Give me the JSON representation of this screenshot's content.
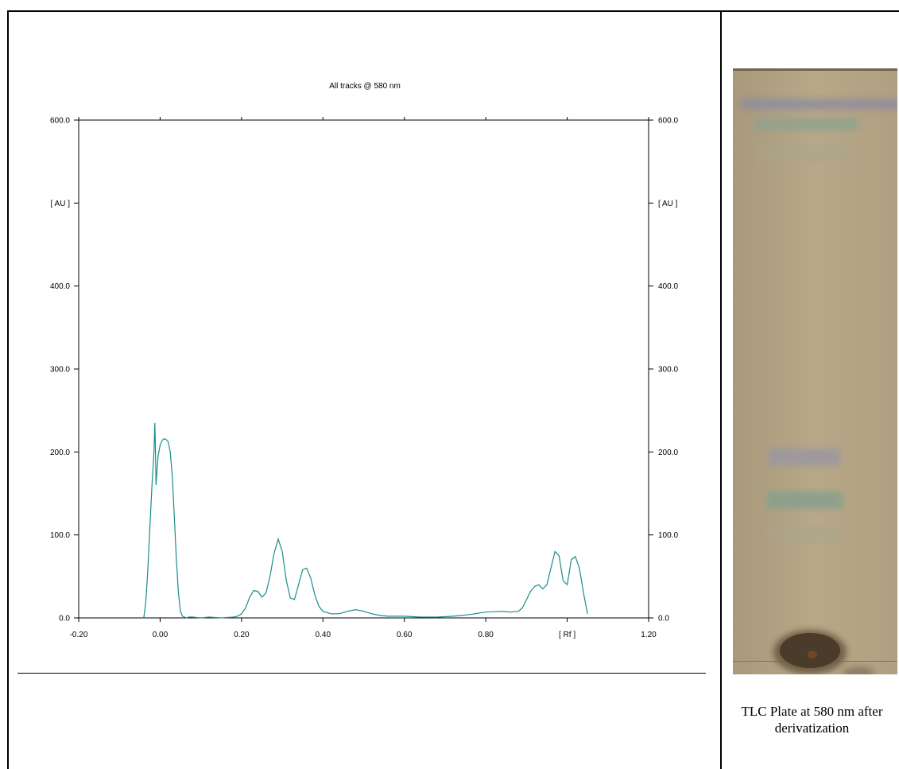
{
  "chart_data": {
    "type": "line",
    "title": "All tracks @ 580 nm",
    "ylabel": "[ AU ]",
    "xlabel": "[ Rf ]",
    "xlim": [
      -0.2,
      1.2
    ],
    "ylim": [
      0,
      600
    ],
    "x_ticks": [
      "-0.20",
      "0.00",
      "0.20",
      "0.40",
      "0.60",
      "0.80",
      "[ Rf ]",
      "1.20"
    ],
    "x_tick_values": [
      -0.2,
      0.0,
      0.2,
      0.4,
      0.6,
      0.8,
      1.0,
      1.2
    ],
    "y_ticks": [
      "0.0",
      "100.0",
      "200.0",
      "300.0",
      "[ AU ]",
      "400.0",
      "600.0"
    ],
    "y_tick_values": [
      0,
      100,
      200,
      300,
      500,
      400,
      600
    ],
    "grid": false,
    "legend": "none",
    "series_color": "#1a8c8c",
    "series": [
      {
        "x": [
          -0.04,
          -0.035,
          -0.03,
          -0.025,
          -0.02,
          -0.015,
          -0.013,
          -0.012,
          -0.01,
          -0.008,
          -0.005,
          0.0,
          0.005,
          0.01,
          0.015,
          0.02,
          0.025,
          0.03,
          0.035,
          0.04,
          0.045,
          0.05,
          0.055,
          0.06,
          0.065,
          0.07,
          0.08,
          0.1,
          0.12,
          0.15,
          0.18,
          0.19,
          0.2,
          0.21,
          0.22,
          0.23,
          0.24,
          0.25,
          0.26,
          0.27,
          0.28,
          0.29,
          0.3,
          0.31,
          0.32,
          0.33,
          0.34,
          0.35,
          0.36,
          0.37,
          0.38,
          0.39,
          0.4,
          0.42,
          0.44,
          0.46,
          0.48,
          0.5,
          0.52,
          0.54,
          0.56,
          0.58,
          0.6,
          0.64,
          0.68,
          0.72,
          0.76,
          0.8,
          0.84,
          0.86,
          0.88,
          0.89,
          0.9,
          0.91,
          0.92,
          0.93,
          0.94,
          0.95,
          0.96,
          0.97,
          0.98,
          0.99,
          1.0,
          1.01,
          1.02,
          1.03,
          1.04,
          1.05
        ],
        "values": [
          0,
          20,
          60,
          110,
          160,
          200,
          235,
          215,
          160,
          175,
          195,
          208,
          214,
          216,
          215,
          212,
          200,
          170,
          120,
          70,
          30,
          8,
          2,
          1,
          0,
          1,
          1,
          0,
          1,
          0,
          1,
          2,
          5,
          12,
          25,
          33,
          32,
          25,
          30,
          50,
          78,
          95,
          80,
          45,
          24,
          22,
          40,
          58,
          60,
          48,
          28,
          14,
          8,
          5,
          5,
          8,
          10,
          8,
          5,
          3,
          2,
          2,
          2,
          1,
          1,
          2,
          4,
          7,
          8,
          7,
          8,
          12,
          22,
          32,
          38,
          40,
          35,
          40,
          60,
          80,
          75,
          45,
          40,
          70,
          74,
          60,
          30,
          5
        ]
      }
    ]
  },
  "figure": {
    "plate_caption": "TLC Plate at 580 nm after derivatization",
    "plate_colors": {
      "background": "#b4a585",
      "band_top": "#8a8a9a",
      "band_upper": "#8fa08e",
      "band_mid": "#9c9a98",
      "band_green": "#8ca08c",
      "band_faint": "#a8a490",
      "origin_spot": "#4a3a28"
    }
  }
}
